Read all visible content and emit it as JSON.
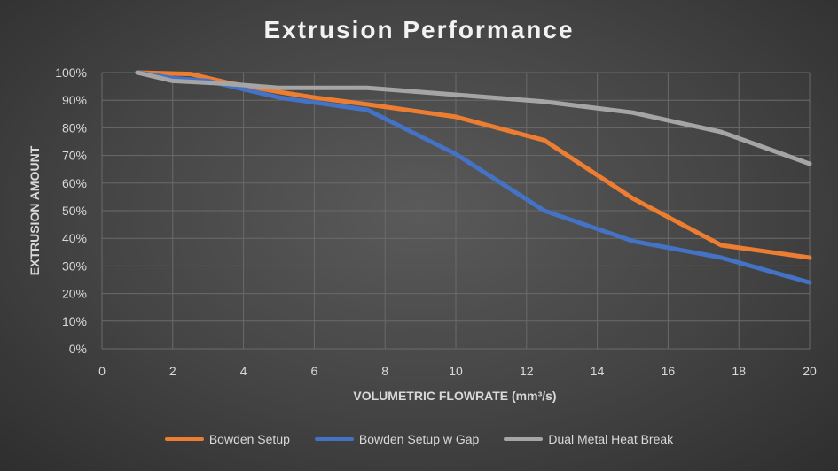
{
  "chart_data": {
    "type": "line",
    "title": "Extrusion Performance",
    "xlabel": "VOLUMETRIC FLOWRATE (mm³/s)",
    "ylabel": "EXTRUSION AMOUNT",
    "xlim": [
      0,
      20
    ],
    "ylim": [
      0,
      100
    ],
    "x_ticks": [
      0,
      2,
      4,
      6,
      8,
      10,
      12,
      14,
      16,
      18,
      20
    ],
    "y_ticks": [
      0,
      10,
      20,
      30,
      40,
      50,
      60,
      70,
      80,
      90,
      100
    ],
    "y_tick_labels": [
      "0%",
      "10%",
      "20%",
      "30%",
      "40%",
      "50%",
      "60%",
      "70%",
      "80%",
      "90%",
      "100%"
    ],
    "grid": true,
    "legend_position": "bottom",
    "series": [
      {
        "name": "Bowden Setup",
        "color": "#ed7d31",
        "points": [
          [
            1,
            100
          ],
          [
            2.5,
            99.5
          ],
          [
            3.5,
            96.5
          ],
          [
            5,
            93
          ],
          [
            6,
            91
          ],
          [
            7.5,
            88.5
          ],
          [
            10,
            84
          ],
          [
            12.5,
            75.5
          ],
          [
            15,
            54.5
          ],
          [
            17.5,
            37.5
          ],
          [
            20,
            33
          ]
        ]
      },
      {
        "name": "Bowden Setup w Gap",
        "color": "#4472c4",
        "points": [
          [
            1,
            100
          ],
          [
            2,
            98
          ],
          [
            3,
            97
          ],
          [
            5,
            91
          ],
          [
            7.5,
            86.5
          ],
          [
            10,
            70.5
          ],
          [
            12.5,
            50
          ],
          [
            15,
            39
          ],
          [
            17.5,
            33
          ],
          [
            20,
            24
          ]
        ]
      },
      {
        "name": "Dual Metal Heat Break",
        "color": "#a5a5a5",
        "points": [
          [
            1,
            100
          ],
          [
            2,
            97
          ],
          [
            3.5,
            96
          ],
          [
            5,
            94.5
          ],
          [
            7.5,
            94.5
          ],
          [
            10,
            92
          ],
          [
            12.5,
            89.5
          ],
          [
            15,
            85.5
          ],
          [
            17.5,
            78.5
          ],
          [
            20,
            67
          ]
        ]
      }
    ]
  }
}
